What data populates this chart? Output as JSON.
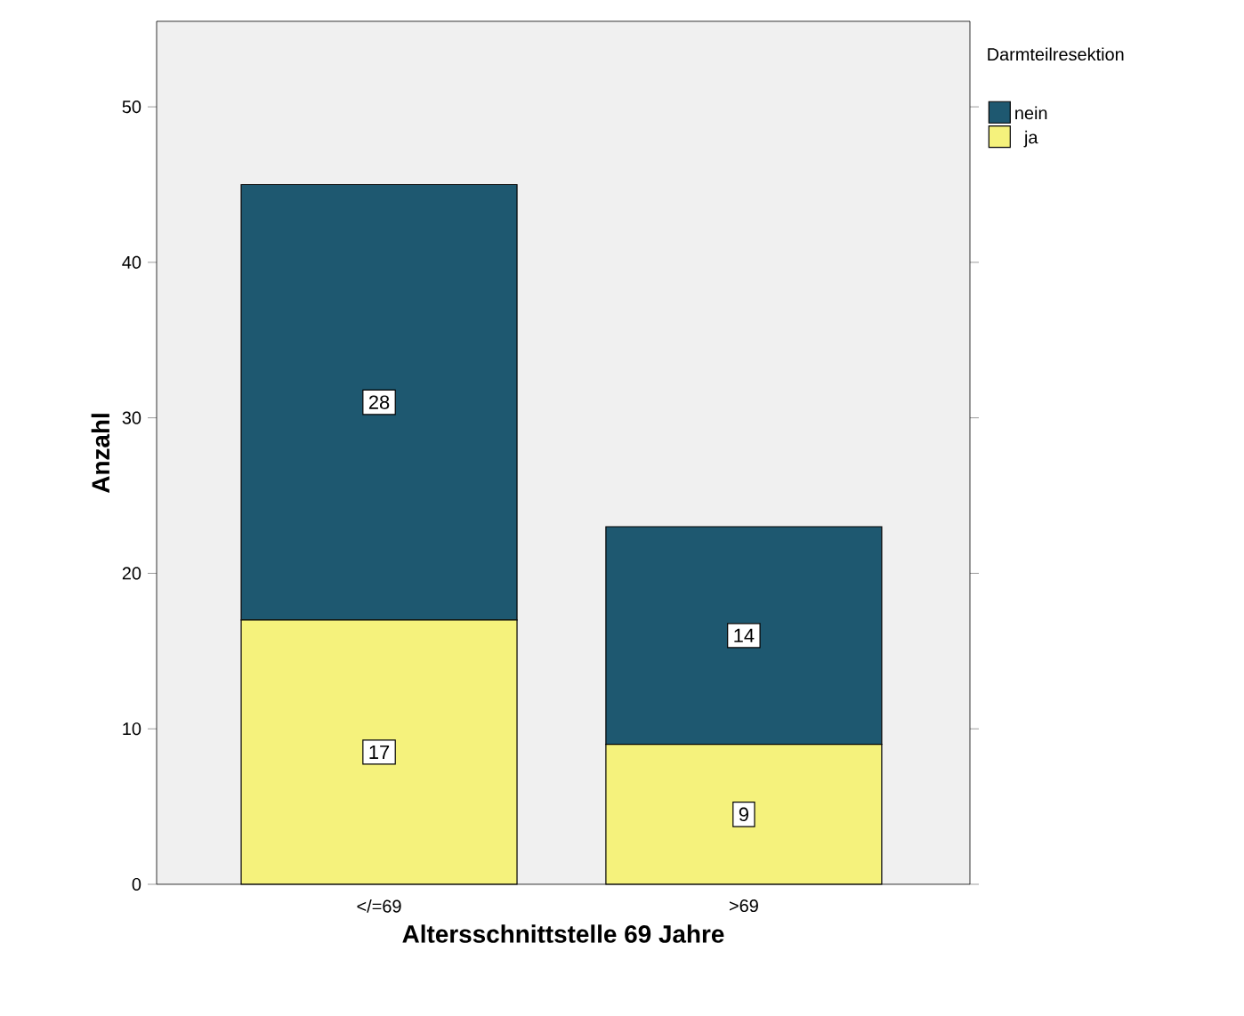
{
  "chart_data": {
    "type": "bar",
    "stacked": true,
    "xlabel": "Altersschnittstelle 69 Jahre",
    "ylabel": "Anzahl",
    "legend_title": "Darmteilresektion",
    "legend": "top right",
    "data_labels": true,
    "categories": [
      "</=69",
      ">69"
    ],
    "series": [
      {
        "name": "ja",
        "color": "#f5f27c",
        "values": [
          17,
          9
        ]
      },
      {
        "name": "nein",
        "color": "#1e5870",
        "values": [
          28,
          14
        ]
      }
    ],
    "ylim": [
      0,
      55.5
    ],
    "yticks": [
      0,
      10,
      20,
      30,
      40,
      50
    ]
  }
}
